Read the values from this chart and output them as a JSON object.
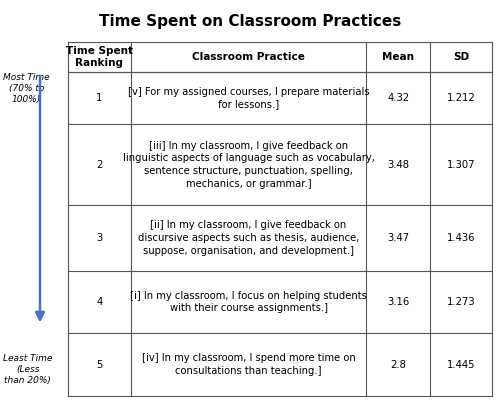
{
  "title": "Time Spent on Classroom Practices",
  "col_headers": [
    "Time Spent\nRanking",
    "Classroom Practice",
    "Mean",
    "SD"
  ],
  "rows": [
    {
      "rank": "1",
      "practice": "[v] For my assigned courses, I prepare materials\nfor lessons.]",
      "mean": "4.32",
      "sd": "1.212"
    },
    {
      "rank": "2",
      "practice": "[iii] In my classroom, I give feedback on\nlinguistic aspects of language such as vocabulary,\nsentence structure, punctuation, spelling,\nmechanics, or grammar.]",
      "mean": "3.48",
      "sd": "1.307"
    },
    {
      "rank": "3",
      "practice": "[ii] In my classroom, I give feedback on\ndiscursive aspects such as thesis, audience,\nsuppose, organisation, and development.]",
      "mean": "3.47",
      "sd": "1.436"
    },
    {
      "rank": "4",
      "practice": "[i] In my classroom, I focus on helping students\nwith their course assignments.]",
      "mean": "3.16",
      "sd": "1.273"
    },
    {
      "rank": "5",
      "practice": "[iv] In my classroom, I spend more time on\nconsultations than teaching.]",
      "mean": "2.8",
      "sd": "1.445"
    }
  ],
  "most_time_label": "Most Time\n(70% to\n100%)",
  "least_time_label": "Least Time\n(Less\nthan 20%)",
  "arrow_color": "#4472C4",
  "title_fontsize": 11,
  "header_fontsize": 7.5,
  "cell_fontsize": 7.2,
  "side_label_fontsize": 6.5,
  "background_color": "#ffffff",
  "border_color": "#555555"
}
